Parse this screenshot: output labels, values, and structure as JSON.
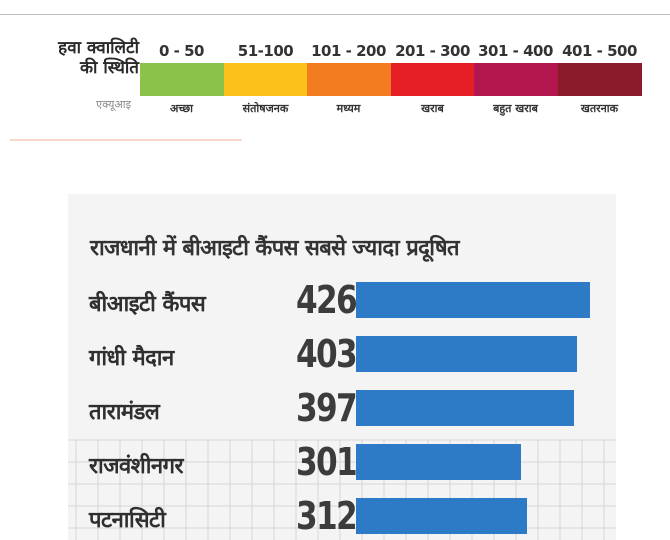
{
  "aqi_legend": {
    "title_line1": "हवा क्वालिटी",
    "title_line2": "की स्थिति",
    "subtitle": "एक्यूआइ",
    "segments": [
      {
        "range": "0 - 50",
        "label": "अच्छा",
        "color": "#8bc34a"
      },
      {
        "range": "51-100",
        "label": "संतोषजनक",
        "color": "#fbc21b"
      },
      {
        "range": "101 - 200",
        "label": "मध्यम",
        "color": "#f47c20"
      },
      {
        "range": "201 - 300",
        "label": "खराब",
        "color": "#e51e25"
      },
      {
        "range": "301 - 400",
        "label": "बहुत खराब",
        "color": "#b3154f"
      },
      {
        "range": "401 - 500",
        "label": "खतरनाक",
        "color": "#8b1a2b"
      }
    ]
  },
  "chart_data": {
    "type": "bar",
    "orientation": "horizontal",
    "title": "राजधानी में बीआइटी कैंपस सबसे ज्यादा प्रदूषित",
    "categories": [
      "बीआइटी कैंपस",
      "गांधी मैदान",
      "तारामंडल",
      "राजवंशीनगर",
      "पटनासिटी"
    ],
    "values": [
      426,
      403,
      397,
      301,
      312
    ],
    "value_labels": [
      "426",
      "403",
      "397",
      "301",
      "312"
    ],
    "bar_color": "#2d7ac6",
    "xlim": [
      0,
      426
    ]
  }
}
